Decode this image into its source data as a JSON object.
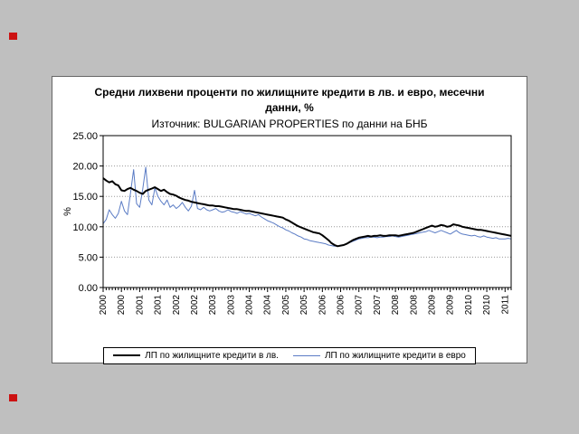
{
  "chart": {
    "title": "Средни лихвени проценти по жилищните кредити в лв. и евро, месечни данни, %",
    "subtitle": "Източник: BULGARIAN PROPERTIES по данни на БНБ",
    "y_axis_label": "%"
  },
  "chart_data": {
    "type": "line",
    "title": "Средни лихвени проценти по жилищните кредити в лв. и евро, месечни данни, %",
    "subtitle": "Източник: BULGARIAN PROPERTIES по данни на БНБ",
    "ylabel": "%",
    "ylim": [
      0,
      25
    ],
    "y_ticks": [
      "0.00",
      "5.00",
      "10.00",
      "15.00",
      "20.00",
      "25.00"
    ],
    "grid": "horizontal-dotted",
    "legend_position": "bottom",
    "x_start": "2000-01",
    "x_end": "2011-03",
    "x_tick_interval_months": 6,
    "x_tick_labels": [
      "2000",
      "2000",
      "2001",
      "2001",
      "2002",
      "2002",
      "2003",
      "2003",
      "2004",
      "2004",
      "2005",
      "2005",
      "2006",
      "2006",
      "2007",
      "2007",
      "2008",
      "2008",
      "2009",
      "2009",
      "2010",
      "2010",
      "2011"
    ],
    "series": [
      {
        "name": "ЛП по жилищните кредити в лв.",
        "color": "#000000",
        "width": 2,
        "values": [
          18.0,
          17.6,
          17.3,
          17.5,
          17.0,
          16.8,
          16.0,
          15.9,
          16.2,
          16.4,
          16.1,
          15.9,
          15.6,
          15.4,
          15.9,
          16.1,
          16.3,
          16.5,
          16.2,
          15.9,
          16.1,
          15.7,
          15.4,
          15.3,
          15.1,
          14.8,
          14.6,
          14.4,
          14.3,
          14.1,
          14.0,
          13.9,
          13.8,
          13.7,
          13.6,
          13.5,
          13.5,
          13.4,
          13.4,
          13.3,
          13.2,
          13.1,
          13.0,
          12.9,
          12.9,
          12.8,
          12.7,
          12.6,
          12.6,
          12.5,
          12.4,
          12.3,
          12.2,
          12.1,
          12.0,
          11.9,
          11.8,
          11.7,
          11.6,
          11.5,
          11.2,
          11.0,
          10.7,
          10.4,
          10.1,
          9.9,
          9.7,
          9.5,
          9.3,
          9.1,
          9.0,
          8.9,
          8.6,
          8.2,
          7.8,
          7.3,
          7.0,
          6.8,
          6.9,
          7.0,
          7.2,
          7.5,
          7.8,
          8.0,
          8.2,
          8.3,
          8.4,
          8.5,
          8.4,
          8.5,
          8.5,
          8.6,
          8.5,
          8.5,
          8.6,
          8.6,
          8.6,
          8.5,
          8.6,
          8.7,
          8.8,
          8.9,
          9.0,
          9.2,
          9.4,
          9.6,
          9.8,
          10.0,
          10.2,
          10.0,
          10.1,
          10.3,
          10.2,
          10.0,
          10.1,
          10.4,
          10.3,
          10.2,
          10.0,
          9.9,
          9.8,
          9.7,
          9.6,
          9.5,
          9.5,
          9.4,
          9.3,
          9.2,
          9.1,
          9.0,
          8.9,
          8.8,
          8.7,
          8.6,
          8.5
        ]
      },
      {
        "name": "ЛП по жилищните кредити в евро",
        "color": "#5b7cc5",
        "width": 1,
        "values": [
          10.5,
          11.2,
          12.8,
          12.0,
          11.4,
          12.2,
          14.2,
          12.6,
          12.0,
          15.6,
          19.4,
          13.8,
          13.2,
          16.2,
          19.8,
          14.4,
          13.6,
          16.4,
          15.0,
          14.2,
          13.6,
          14.4,
          13.2,
          13.6,
          13.0,
          13.4,
          14.0,
          13.2,
          12.6,
          13.4,
          16.0,
          13.0,
          12.8,
          13.2,
          12.8,
          12.6,
          12.8,
          13.0,
          12.6,
          12.4,
          12.5,
          12.8,
          12.5,
          12.4,
          12.2,
          12.5,
          12.3,
          12.1,
          12.2,
          12.0,
          11.8,
          12.0,
          11.6,
          11.3,
          11.0,
          10.8,
          10.6,
          10.3,
          10.0,
          9.8,
          9.5,
          9.3,
          9.0,
          8.8,
          8.5,
          8.3,
          8.0,
          7.9,
          7.7,
          7.6,
          7.5,
          7.4,
          7.3,
          7.2,
          7.0,
          6.9,
          6.8,
          6.8,
          6.9,
          7.0,
          7.2,
          7.4,
          7.6,
          7.8,
          8.0,
          8.1,
          8.2,
          8.2,
          8.3,
          8.3,
          8.2,
          8.3,
          8.3,
          8.4,
          8.4,
          8.5,
          8.4,
          8.3,
          8.4,
          8.5,
          8.6,
          8.7,
          8.8,
          8.9,
          9.0,
          9.1,
          9.2,
          9.4,
          9.2,
          9.0,
          9.2,
          9.4,
          9.2,
          9.0,
          8.8,
          9.1,
          9.4,
          9.0,
          8.8,
          8.7,
          8.6,
          8.5,
          8.6,
          8.4,
          8.3,
          8.5,
          8.3,
          8.2,
          8.1,
          8.2,
          8.0,
          8.0,
          8.0,
          8.1,
          8.0
        ]
      }
    ]
  }
}
